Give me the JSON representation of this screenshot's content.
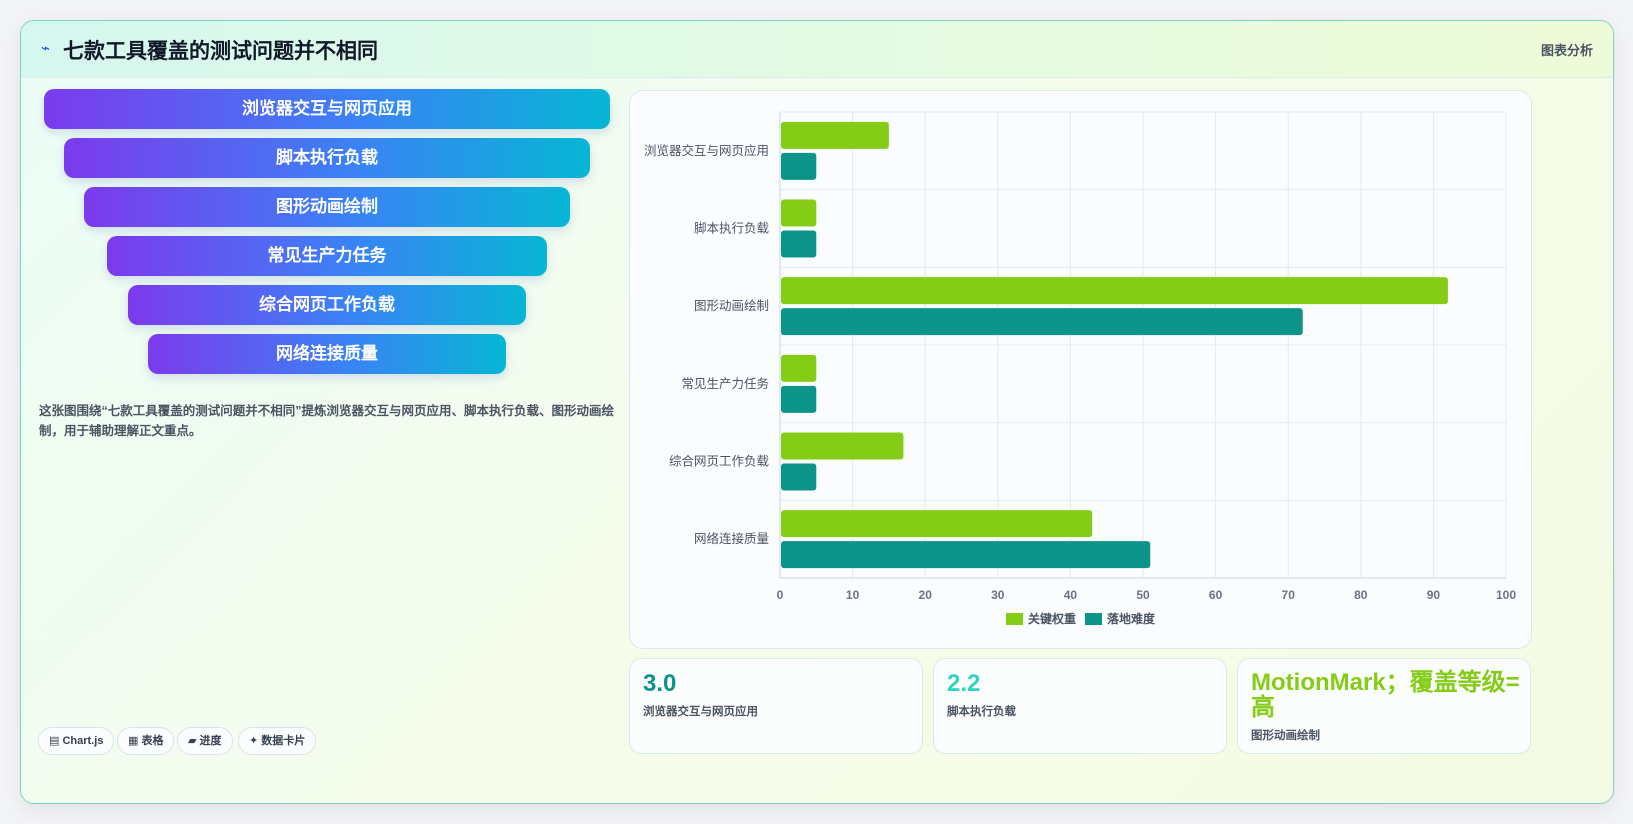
{
  "header": {
    "icon": "chart-icon",
    "title": "七款工具覆盖的测试问题并不相同",
    "action": "图表分析"
  },
  "funnel": {
    "steps": [
      "浏览器交互与网页应用",
      "脚本执行负载",
      "图形动画绘制",
      "常见生产力任务",
      "综合网页工作负载",
      "网络连接质量"
    ]
  },
  "description": "这张图围绕“七款工具覆盖的测试问题并不相同”提炼浏览器交互与网页应用、脚本执行负载、图形动画绘制，用于辅助理解正文重点。",
  "tags": [
    "▤ Chart.js",
    "▦ 表格",
    "▰ 进度",
    "✦ 数据卡片"
  ],
  "chart_data": {
    "type": "bar",
    "orientation": "horizontal",
    "categories": [
      "浏览器交互与网页应用",
      "脚本执行负载",
      "图形动画绘制",
      "常见生产力任务",
      "综合网页工作负载",
      "网络连接质量"
    ],
    "series": [
      {
        "name": "关键权重",
        "color": "#84cc16",
        "values": [
          15,
          5,
          92,
          5,
          17,
          43
        ]
      },
      {
        "name": "落地难度",
        "color": "#0d9488",
        "values": [
          5,
          5,
          72,
          5,
          5,
          51
        ]
      }
    ],
    "xlim": [
      0,
      100
    ],
    "xticks": [
      0,
      10,
      20,
      30,
      40,
      50,
      60,
      70,
      80,
      90,
      100
    ],
    "grid": true,
    "legend_position": "bottom"
  },
  "stats": [
    {
      "value": "3.0",
      "label": "浏览器交互与网页应用",
      "color": "#0d9488"
    },
    {
      "value": "2.2",
      "label": "脚本执行负载",
      "color": "#2dd4bf"
    },
    {
      "value": "MotionMark；覆盖等级=高",
      "label": "图形动画绘制",
      "color": "#84cc16"
    }
  ]
}
